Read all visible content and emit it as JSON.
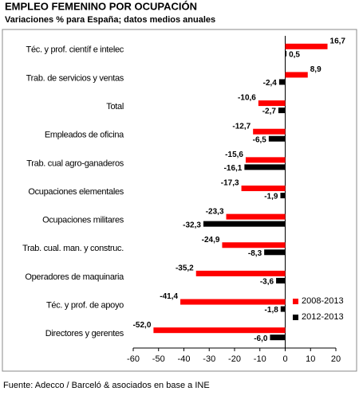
{
  "chart_data": {
    "type": "hbar",
    "title": "EMPLEO FEMENINO POR OCUPACIÓN",
    "subtitle": "Variaciones % para España; datos medios anuales",
    "source": "Fuente: Adecco / Barceló & asociados en base a INE",
    "categories": [
      "Téc. y prof. científ e intelec",
      "Trab. de servicios y ventas",
      "Total",
      "Empleados de oficina",
      "Trab. cual agro-ganaderos",
      "Ocupaciones elementales",
      "Ocupaciones militares",
      "Trab. cual. man. y construc.",
      "Operadores de maquinaria",
      "Téc. y prof. de apoyo",
      "Directores y gerentes"
    ],
    "series": [
      {
        "name": "2008-2013",
        "color": "#ff0000",
        "values": [
          16.7,
          8.9,
          -10.6,
          -12.7,
          -15.6,
          -17.3,
          -23.3,
          -24.9,
          -35.2,
          -41.4,
          -52.0
        ],
        "value_labels": [
          "16,7",
          "8,9",
          "-10,6",
          "-12,7",
          "-15,6",
          "-17,3",
          "-23,3",
          "-24,9",
          "-35,2",
          "-41,4",
          "-52,0"
        ]
      },
      {
        "name": "2012-2013",
        "color": "#000000",
        "values": [
          0.5,
          -2.4,
          -2.7,
          -6.5,
          -16.1,
          -1.9,
          -32.3,
          -8.3,
          -3.6,
          -1.8,
          -6.0
        ],
        "value_labels": [
          "0,5",
          "-2,4",
          "-2,7",
          "-6,5",
          "-16,1",
          "-1,9",
          "-32,3",
          "-8,3",
          "-3,6",
          "-1,8",
          "-6,0"
        ]
      }
    ],
    "xlim": [
      -60,
      20
    ],
    "xticks": [
      -60,
      -50,
      -40,
      -30,
      -20,
      -10,
      0,
      10,
      20
    ],
    "legend": "lower right",
    "grid": false
  }
}
